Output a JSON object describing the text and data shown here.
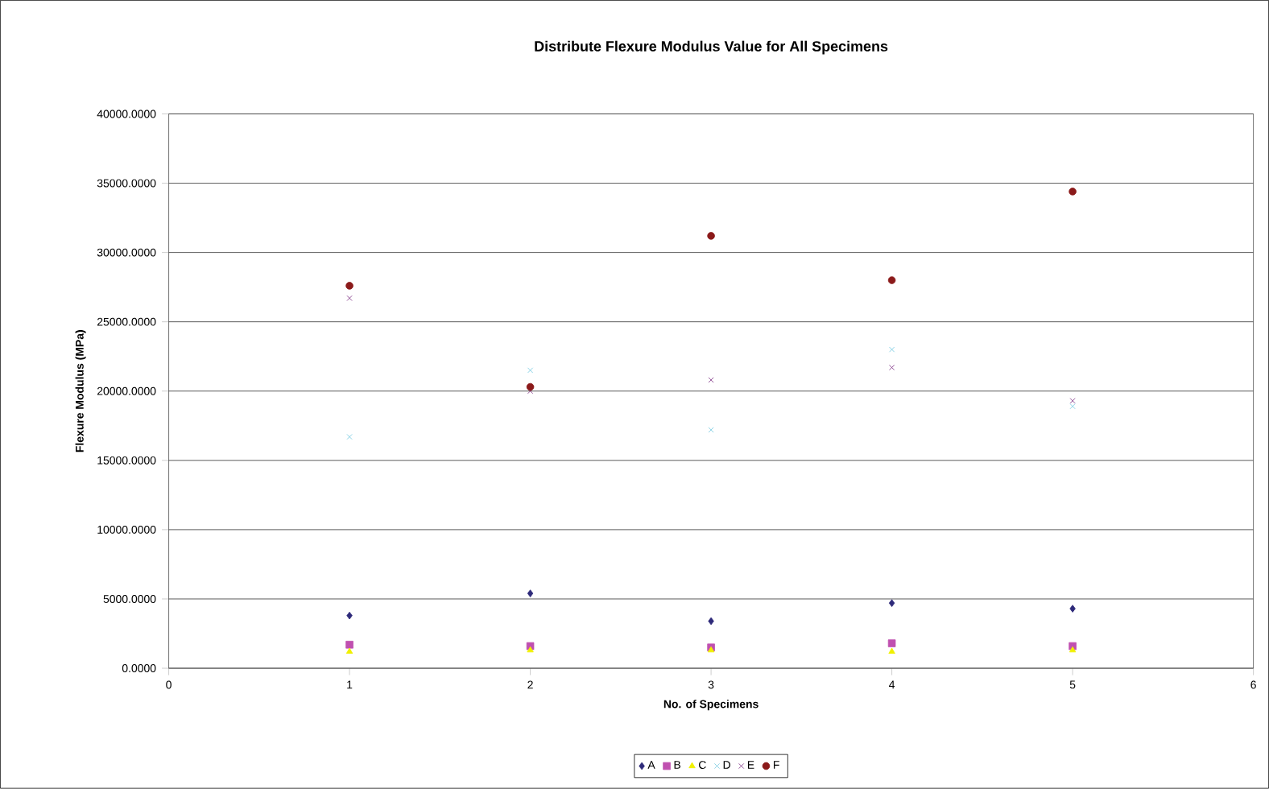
{
  "chart_data": {
    "type": "scatter",
    "title": "Distribute Flexure Modulus Value for All Specimens",
    "xlabel": "No. of Specimens",
    "ylabel": "Flexure Modulus (MPa)",
    "x": [
      1,
      2,
      3,
      4,
      5
    ],
    "series": [
      {
        "name": "A",
        "color": "#2e2a7a",
        "marker": "diamond",
        "values": [
          3800,
          5400,
          3400,
          4700,
          4300
        ]
      },
      {
        "name": "B",
        "color": "#c050b0",
        "marker": "square",
        "values": [
          1700,
          1600,
          1500,
          1800,
          1600
        ]
      },
      {
        "name": "C",
        "color": "#f0f000",
        "marker": "triangle",
        "values": [
          1200,
          1300,
          1300,
          1200,
          1300
        ]
      },
      {
        "name": "D",
        "color": "#70c8e0",
        "marker": "cross",
        "values": [
          16700,
          21500,
          17200,
          23000,
          18900
        ]
      },
      {
        "name": "E",
        "color": "#7a2a80",
        "marker": "cross",
        "values": [
          26700,
          20000,
          20800,
          21700,
          19300
        ]
      },
      {
        "name": "F",
        "color": "#8b1a1a",
        "marker": "circle",
        "values": [
          27600,
          20300,
          31200,
          28000,
          34400
        ]
      }
    ],
    "xlim": [
      0,
      6
    ],
    "xticks": [
      0,
      1,
      2,
      3,
      4,
      5,
      6
    ],
    "ylim": [
      0,
      40000
    ],
    "yticks": [
      {
        "value": 0,
        "label": "0.0000"
      },
      {
        "value": 5000,
        "label": "5000.0000"
      },
      {
        "value": 10000,
        "label": "10000.0000"
      },
      {
        "value": 15000,
        "label": "15000.0000"
      },
      {
        "value": 20000,
        "label": "20000.0000"
      },
      {
        "value": 25000,
        "label": "25000.0000"
      },
      {
        "value": 30000,
        "label": "30000.0000"
      },
      {
        "value": 35000,
        "label": "35000.0000"
      },
      {
        "value": 40000,
        "label": "40000.0000"
      }
    ],
    "grid": "y",
    "legend": "bottom"
  }
}
